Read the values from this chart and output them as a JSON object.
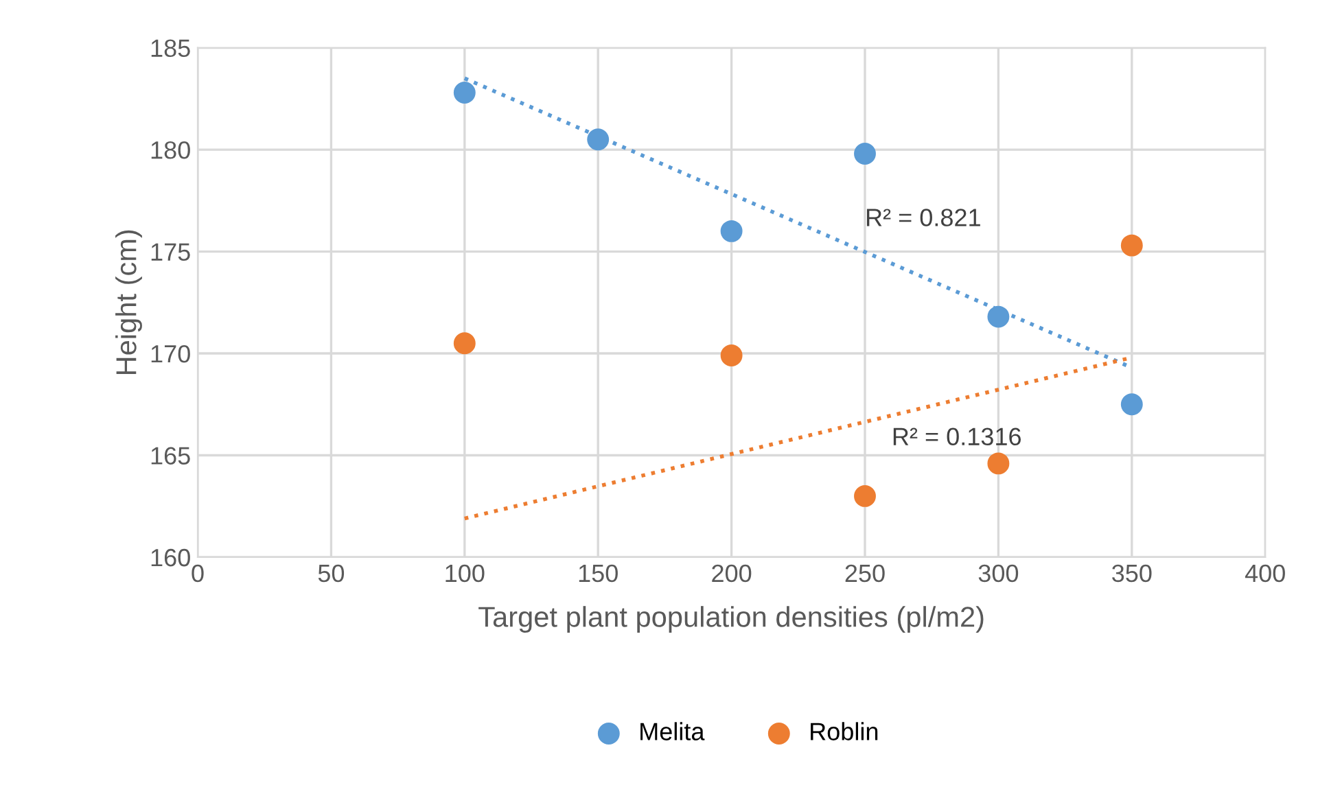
{
  "chart_data": {
    "type": "scatter",
    "xlabel": "Target plant population densities (pl/m2)",
    "ylabel": "Height (cm)",
    "x": [
      100,
      150,
      200,
      250,
      300,
      350
    ],
    "series": [
      {
        "name": "Melita",
        "color": "#5b9bd5",
        "values": [
          182.8,
          180.5,
          176.0,
          179.8,
          171.8,
          167.5
        ]
      },
      {
        "name": "Roblin",
        "color": "#ed7d31",
        "x": [
          100,
          200,
          250,
          300,
          350
        ],
        "values": [
          170.5,
          169.9,
          163.0,
          164.6,
          175.3
        ]
      },
      {
        "type": "line",
        "color": "#5b9bd5",
        "line_style": "dotted",
        "marker": "none",
        "x": [
          100,
          350
        ],
        "values": [
          183.5,
          169.3
        ]
      },
      {
        "type": "line",
        "color": "#ed7d31",
        "line_style": "dotted",
        "marker": "none",
        "x": [
          100,
          350
        ],
        "values": [
          161.9,
          169.8
        ]
      }
    ],
    "annotations": [
      "R² = 0.821",
      "R² = 0.1316"
    ],
    "xlim": [
      0,
      400
    ],
    "xticks": [
      0,
      50,
      100,
      150,
      200,
      250,
      300,
      350,
      400
    ],
    "ylim": [
      160,
      185
    ],
    "yticks": [
      160,
      165,
      170,
      175,
      180,
      185
    ],
    "grid": true,
    "legend": "bottom",
    "marker": "circle"
  }
}
